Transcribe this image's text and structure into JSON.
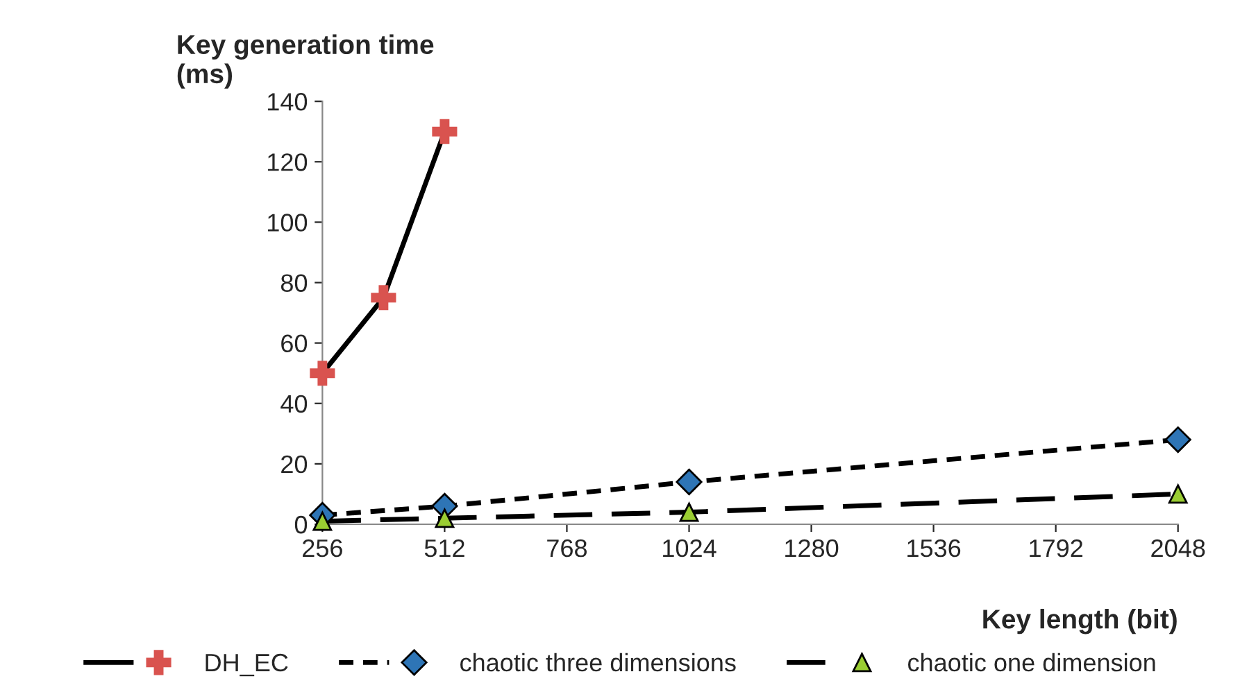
{
  "chart_data": {
    "type": "line",
    "ylabel": "Key generation time\n(ms)",
    "xlabel": "Key length (bit)",
    "xlim": [
      256,
      2048
    ],
    "xticks": [
      256,
      512,
      768,
      1024,
      1280,
      1536,
      1792,
      2048
    ],
    "ylim": [
      0,
      140
    ],
    "yticks": [
      0,
      20,
      40,
      60,
      80,
      100,
      120,
      140
    ],
    "grid": false,
    "legend": "bottom",
    "series": [
      {
        "name": "DH_EC",
        "color": "#000000",
        "colors": [
          "#d9534f",
          "#d9534f",
          "#d9534f"
        ],
        "marker": "cross",
        "line_style": "solid",
        "x": [
          256,
          384,
          512
        ],
        "values": [
          50,
          75,
          130
        ]
      },
      {
        "name": "chaotic three dimensions",
        "color": "#000000",
        "colors": [
          "#2e75b6",
          "#2e75b6",
          "#2e75b6",
          "#2e75b6"
        ],
        "marker": "diamond",
        "line_style": "dotted",
        "x": [
          256,
          512,
          1024,
          2048
        ],
        "values": [
          3,
          6,
          14,
          28
        ]
      },
      {
        "name": "chaotic one dimension",
        "color": "#000000",
        "colors": [
          "#9acd32",
          "#9acd32",
          "#9acd32",
          "#9acd32"
        ],
        "marker": "triangle",
        "line_style": "dashed",
        "x": [
          256,
          512,
          1024,
          2048
        ],
        "values": [
          1,
          2,
          4,
          10
        ]
      }
    ]
  }
}
